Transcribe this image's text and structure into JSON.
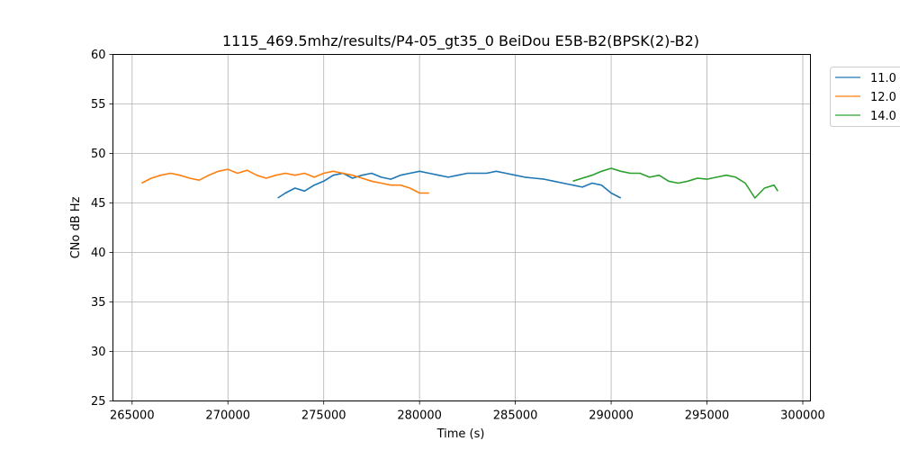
{
  "chart_data": {
    "type": "line",
    "title": "1115_469.5mhz/results/P4-05_gt35_0 BeiDou E5B-B2(BPSK(2)-B2)",
    "xlabel": "Time (s)",
    "ylabel": "CNo dB Hz",
    "xlim": [
      264000,
      300400
    ],
    "ylim": [
      25,
      60
    ],
    "xticks": [
      265000,
      270000,
      275000,
      280000,
      285000,
      290000,
      295000,
      300000
    ],
    "yticks": [
      25,
      30,
      35,
      40,
      45,
      50,
      55,
      60
    ],
    "grid": true,
    "legend_position": "outside-top-right",
    "series": [
      {
        "name": "11.0",
        "color": "#1f77b4",
        "x": [
          272600,
          273000,
          273500,
          274000,
          274500,
          275000,
          275500,
          276000,
          276500,
          277000,
          277500,
          278000,
          278500,
          279000,
          279500,
          280000,
          280500,
          281000,
          281500,
          282000,
          282500,
          283000,
          283500,
          284000,
          284500,
          285000,
          285500,
          286000,
          286500,
          287000,
          287500,
          288000,
          288500,
          289000,
          289500,
          290000,
          290500
        ],
        "y": [
          45.5,
          46.0,
          46.5,
          46.2,
          46.8,
          47.2,
          47.8,
          48.0,
          47.5,
          47.8,
          48.0,
          47.6,
          47.4,
          47.8,
          48.0,
          48.2,
          48.0,
          47.8,
          47.6,
          47.8,
          48.0,
          48.0,
          48.0,
          48.2,
          48.0,
          47.8,
          47.6,
          47.5,
          47.4,
          47.2,
          47.0,
          46.8,
          46.6,
          47.0,
          46.8,
          46.0,
          45.5
        ]
      },
      {
        "name": "12.0",
        "color": "#ff7f0e",
        "x": [
          265500,
          266000,
          266500,
          267000,
          267500,
          268000,
          268500,
          269000,
          269500,
          270000,
          270500,
          271000,
          271500,
          272000,
          272500,
          273000,
          273500,
          274000,
          274500,
          275000,
          275500,
          276000,
          276500,
          277000,
          277500,
          278000,
          278500,
          279000,
          279500,
          280000,
          280500
        ],
        "y": [
          47.0,
          47.5,
          47.8,
          48.0,
          47.8,
          47.5,
          47.3,
          47.8,
          48.2,
          48.4,
          48.0,
          48.3,
          47.8,
          47.5,
          47.8,
          48.0,
          47.8,
          48.0,
          47.6,
          48.0,
          48.2,
          48.0,
          47.8,
          47.5,
          47.2,
          47.0,
          46.8,
          46.8,
          46.5,
          46.0,
          46.0
        ]
      },
      {
        "name": "14.0",
        "color": "#2ca02c",
        "x": [
          288000,
          288500,
          289000,
          289500,
          290000,
          290500,
          291000,
          291500,
          292000,
          292500,
          293000,
          293500,
          294000,
          294500,
          295000,
          295500,
          296000,
          296500,
          297000,
          297500,
          298000,
          298500,
          298700
        ],
        "y": [
          47.2,
          47.5,
          47.8,
          48.2,
          48.5,
          48.2,
          48.0,
          48.0,
          47.6,
          47.8,
          47.2,
          47.0,
          47.2,
          47.5,
          47.4,
          47.6,
          47.8,
          47.6,
          47.0,
          45.5,
          46.5,
          46.8,
          46.2
        ]
      }
    ]
  }
}
